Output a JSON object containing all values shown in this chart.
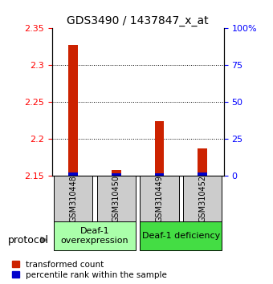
{
  "title": "GDS3490 / 1437847_x_at",
  "samples": [
    "GSM310448",
    "GSM310450",
    "GSM310449",
    "GSM310452"
  ],
  "red_values": [
    2.328,
    2.158,
    2.224,
    2.188
  ],
  "blue_values": [
    2.153,
    2.152,
    2.152,
    2.153
  ],
  "ylim_left": [
    2.15,
    2.35
  ],
  "ylim_right": [
    0,
    100
  ],
  "yticks_left": [
    2.15,
    2.2,
    2.25,
    2.3,
    2.35
  ],
  "yticks_right": [
    0,
    25,
    50,
    75,
    100
  ],
  "ytick_labels_left": [
    "2.15",
    "2.2",
    "2.25",
    "2.3",
    "2.35"
  ],
  "ytick_labels_right": [
    "0",
    "25",
    "50",
    "75",
    "100%"
  ],
  "red_color": "#cc2200",
  "blue_color": "#0000cc",
  "group1_label": "Deaf-1\noverexpression",
  "group2_label": "Deaf-1 deficiency",
  "group1_bg": "#aaffaa",
  "group2_bg": "#44dd44",
  "sample_box_bg": "#cccccc",
  "legend_red": "transformed count",
  "legend_blue": "percentile rank within the sample",
  "protocol_label": "protocol",
  "base_value": 2.15
}
